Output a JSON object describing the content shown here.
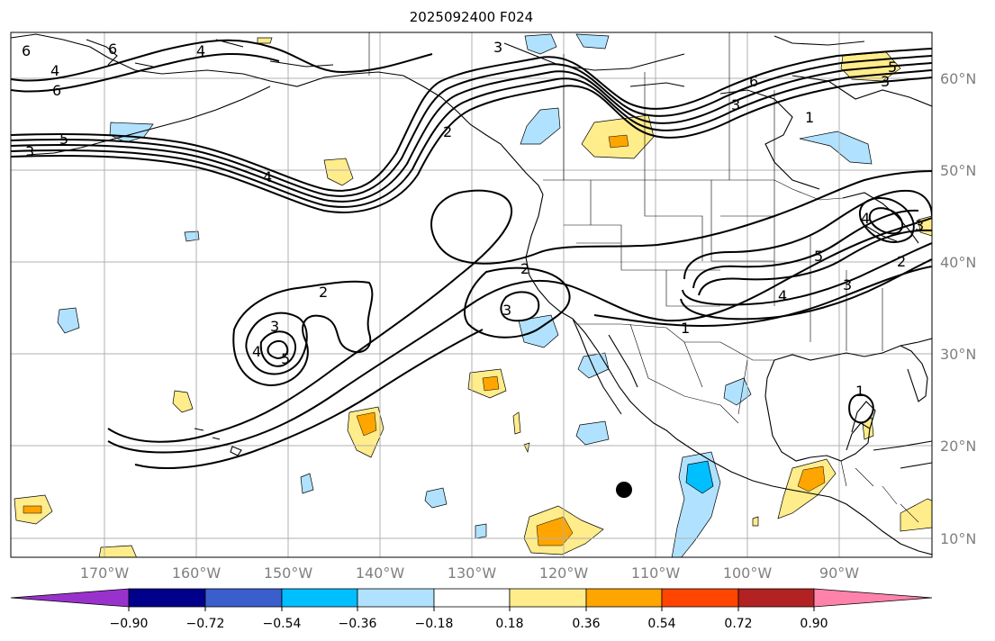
{
  "title": "2025092400 F024",
  "lon_labels": [
    "170°W",
    "160°W",
    "150°W",
    "140°W",
    "130°W",
    "120°W",
    "110°W",
    "100°W",
    "90°W"
  ],
  "lat_labels": [
    "60°N",
    "50°N",
    "40°N",
    "30°N",
    "20°N",
    "10°N"
  ],
  "colorbar": {
    "ticks": [
      "−0.90",
      "−0.72",
      "−0.54",
      "−0.36",
      "−0.18",
      "0.18",
      "0.36",
      "0.54",
      "0.72",
      "0.90"
    ],
    "colors": [
      "#9932cc",
      "#00008b",
      "#3a5fcd",
      "#00bfff",
      "#b0e2ff",
      "#ffffff",
      "#ffec8b",
      "#ffa500",
      "#ff4500",
      "#b22222",
      "#ff82ab"
    ]
  },
  "contour_labels": [
    "6",
    "4",
    "6",
    "4",
    "5",
    "4",
    "3",
    "6",
    "3",
    "6",
    "5",
    "3",
    "2",
    "1",
    "2",
    "3",
    "4",
    "5",
    "4",
    "3",
    "2",
    "1",
    "2",
    "3",
    "5",
    "4",
    "3",
    "3",
    "1"
  ],
  "colors": {
    "land": "#000000",
    "grid": "#b0b0b0",
    "contour": "#000000",
    "neg_light": "#b0e2ff",
    "neg_mid": "#00bfff",
    "pos_light": "#ffec8b",
    "pos_mid": "#ffa500"
  }
}
